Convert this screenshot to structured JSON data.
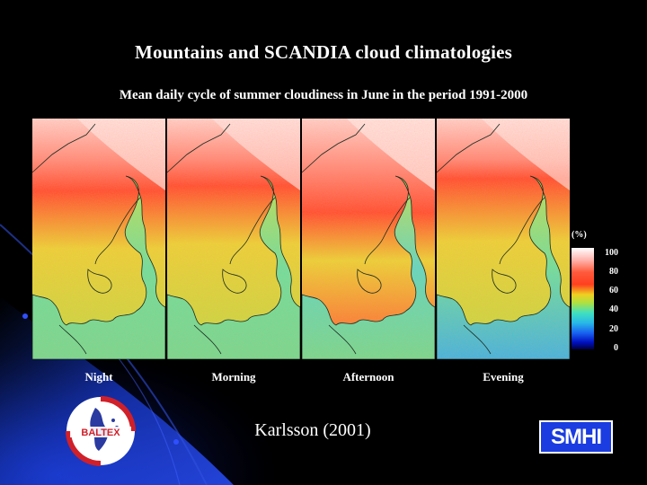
{
  "slide": {
    "title": "Mountains and SCANDIA cloud climatologies",
    "subtitle": "Mean daily cycle of summer cloudiness in June in the period 1991-2000",
    "citation": "Karlsson (2001)"
  },
  "panels": [
    {
      "label": "Night",
      "cloud_level": 0.55
    },
    {
      "label": "Morning",
      "cloud_level": 0.5
    },
    {
      "label": "Afternoon",
      "cloud_level": 0.7
    },
    {
      "label": "Evening",
      "cloud_level": 0.45
    }
  ],
  "colorbar": {
    "unit": "(%)",
    "ticks": [
      "100",
      "80",
      "60",
      "40",
      "20",
      "0"
    ]
  },
  "logos": {
    "baltex": "BALTEX",
    "smhi": "SMHI"
  },
  "colors": {
    "background": "#000000",
    "accent_blue": "#1a3ce0",
    "logo_red": "#d0202a"
  }
}
